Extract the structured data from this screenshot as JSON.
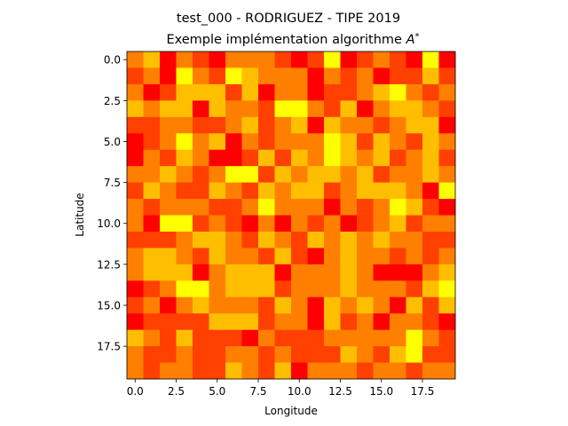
{
  "chart_data": {
    "type": "heatmap",
    "title": "test_000 - RODRIGUEZ - TIPE 2019",
    "subtitle": "Exemple implémentation algorithme A*",
    "xlabel": "Longitude",
    "ylabel": "Latitude",
    "x_ticks": [
      "0.0",
      "2.5",
      "5.0",
      "7.5",
      "10.0",
      "12.5",
      "15.0",
      "17.5"
    ],
    "y_ticks": [
      "0.0",
      "2.5",
      "5.0",
      "7.5",
      "10.0",
      "12.5",
      "15.0",
      "17.5"
    ],
    "xlim": [
      -0.5,
      19.5
    ],
    "ylim": [
      19.5,
      -0.5
    ],
    "colormap": "autumn",
    "color_min": "#ff0000",
    "color_max": "#ffff00",
    "value_range": [
      0,
      4
    ],
    "grid": false,
    "legend": "none",
    "cells": [
      [
        2,
        3,
        0,
        2,
        1,
        0,
        2,
        2,
        2,
        1,
        0,
        1,
        4,
        0,
        1,
        2,
        1,
        0,
        4,
        0
      ],
      [
        1,
        2,
        0,
        4,
        2,
        1,
        4,
        3,
        2,
        2,
        2,
        0,
        2,
        1,
        2,
        0,
        1,
        1,
        3,
        1
      ],
      [
        2,
        0,
        1,
        3,
        3,
        3,
        1,
        3,
        0,
        2,
        2,
        0,
        1,
        1,
        2,
        3,
        4,
        2,
        1,
        2
      ],
      [
        3,
        2,
        3,
        3,
        0,
        3,
        2,
        2,
        1,
        4,
        4,
        2,
        1,
        3,
        0,
        2,
        3,
        3,
        2,
        1
      ],
      [
        1,
        1,
        2,
        2,
        1,
        1,
        2,
        3,
        1,
        2,
        3,
        0,
        3,
        2,
        2,
        1,
        2,
        3,
        3,
        0
      ],
      [
        0,
        1,
        2,
        4,
        2,
        3,
        0,
        2,
        1,
        2,
        2,
        2,
        4,
        3,
        1,
        3,
        2,
        1,
        3,
        2
      ],
      [
        0,
        2,
        1,
        3,
        2,
        0,
        0,
        1,
        3,
        1,
        3,
        2,
        4,
        3,
        2,
        3,
        1,
        2,
        3,
        1
      ],
      [
        2,
        2,
        3,
        2,
        1,
        2,
        4,
        4,
        1,
        3,
        2,
        3,
        3,
        2,
        3,
        1,
        2,
        2,
        3,
        2
      ],
      [
        1,
        3,
        2,
        1,
        1,
        3,
        2,
        1,
        3,
        2,
        3,
        3,
        1,
        2,
        3,
        3,
        3,
        2,
        0,
        4
      ],
      [
        2,
        1,
        2,
        2,
        2,
        1,
        1,
        2,
        4,
        2,
        2,
        2,
        0,
        2,
        1,
        2,
        4,
        3,
        1,
        0
      ],
      [
        2,
        0,
        4,
        4,
        1,
        2,
        1,
        0,
        2,
        0,
        2,
        1,
        2,
        0,
        1,
        2,
        3,
        1,
        2,
        2
      ],
      [
        1,
        1,
        1,
        2,
        3,
        3,
        2,
        1,
        3,
        2,
        1,
        3,
        2,
        3,
        2,
        3,
        2,
        2,
        1,
        1
      ],
      [
        2,
        3,
        3,
        2,
        1,
        3,
        2,
        2,
        1,
        3,
        1,
        0,
        2,
        3,
        2,
        2,
        1,
        2,
        1,
        2
      ],
      [
        2,
        3,
        3,
        3,
        0,
        2,
        3,
        3,
        3,
        0,
        2,
        2,
        2,
        3,
        2,
        0,
        0,
        0,
        2,
        3
      ],
      [
        0,
        1,
        2,
        4,
        4,
        2,
        3,
        3,
        3,
        1,
        2,
        2,
        2,
        3,
        2,
        2,
        2,
        1,
        3,
        4
      ],
      [
        1,
        2,
        0,
        2,
        3,
        2,
        2,
        2,
        1,
        3,
        2,
        0,
        3,
        2,
        3,
        2,
        0,
        3,
        1,
        3
      ],
      [
        0,
        1,
        1,
        1,
        1,
        3,
        3,
        3,
        1,
        2,
        2,
        0,
        3,
        1,
        2,
        0,
        2,
        2,
        1,
        0
      ],
      [
        3,
        2,
        1,
        3,
        1,
        1,
        1,
        0,
        2,
        1,
        1,
        1,
        2,
        2,
        2,
        2,
        2,
        4,
        2,
        1
      ],
      [
        2,
        1,
        1,
        2,
        1,
        1,
        2,
        2,
        1,
        2,
        1,
        1,
        1,
        3,
        2,
        1,
        3,
        4,
        1,
        1
      ],
      [
        2,
        1,
        2,
        2,
        1,
        1,
        3,
        2,
        1,
        3,
        0,
        2,
        2,
        2,
        1,
        2,
        2,
        1,
        2,
        2
      ]
    ]
  }
}
